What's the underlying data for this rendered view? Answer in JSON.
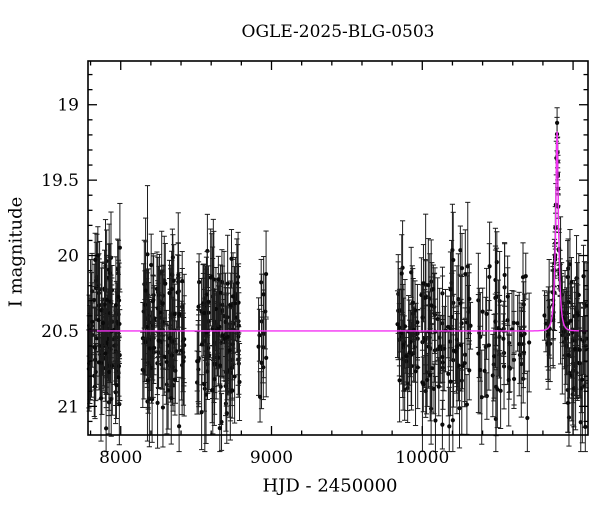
{
  "title": "OGLE-2025-BLG-0503",
  "chart_data": {
    "type": "scatter",
    "title": "OGLE-2025-BLG-0503",
    "xlabel": "HJD - 2450000",
    "ylabel": "I magnitude",
    "xlim": [
      7783,
      11099
    ],
    "ylim": [
      21.19,
      18.71
    ],
    "x_major_ticks": [
      {
        "value": 8000,
        "label": "8000"
      },
      {
        "value": 9000,
        "label": "9000"
      },
      {
        "value": 10000,
        "label": "10000"
      },
      {
        "value": 11000,
        "label": ""
      }
    ],
    "x_minor_step": 200,
    "y_major_ticks": [
      {
        "value": 19,
        "label": "19"
      },
      {
        "value": 19.5,
        "label": "19.5"
      },
      {
        "value": 20,
        "label": "20"
      },
      {
        "value": 20.5,
        "label": "20.5"
      },
      {
        "value": 21,
        "label": "21"
      }
    ],
    "y_minor_step": 0.1,
    "grid": false,
    "background_color": "#ffffff",
    "frame_color": "#000000",
    "point_color": "#0a0a0a",
    "errorbar_color": "#1c1c1c",
    "model_color": "#f332f3",
    "model_curve": {
      "type": "paczynski",
      "baseline_mag": 20.5,
      "t0": 10894,
      "tE": 20,
      "u0": 0.306,
      "peak_mag": 19.17
    },
    "brightest_point": {
      "t": 10894,
      "mag": 19.12,
      "err": 0.1
    },
    "clusters": [
      {
        "id": "season-1",
        "t_min": 7788,
        "t_max": 7996,
        "n": 112,
        "mode": "baseline",
        "mean_mag": 20.52,
        "sigma": 0.26
      },
      {
        "id": "season-2",
        "t_min": 8145,
        "t_max": 8425,
        "n": 118,
        "mode": "baseline",
        "mean_mag": 20.5,
        "sigma": 0.26
      },
      {
        "id": "season-3",
        "t_min": 8505,
        "t_max": 8790,
        "n": 122,
        "mode": "baseline",
        "mean_mag": 20.52,
        "sigma": 0.27
      },
      {
        "id": "season-4",
        "t_min": 8910,
        "t_max": 8972,
        "n": 13,
        "mode": "baseline",
        "mean_mag": 20.45,
        "sigma": 0.2
      },
      {
        "id": "season-5",
        "t_min": 9833,
        "t_max": 9970,
        "n": 42,
        "mode": "baseline",
        "mean_mag": 20.5,
        "sigma": 0.25
      },
      {
        "id": "season-6",
        "t_min": 9992,
        "t_max": 10156,
        "n": 48,
        "mode": "baseline",
        "mean_mag": 20.52,
        "sigma": 0.26
      },
      {
        "id": "season-7",
        "t_min": 10170,
        "t_max": 10322,
        "n": 42,
        "mode": "baseline",
        "mean_mag": 20.5,
        "sigma": 0.26
      },
      {
        "id": "season-8",
        "t_min": 10370,
        "t_max": 10720,
        "n": 62,
        "mode": "baseline",
        "mean_mag": 20.52,
        "sigma": 0.26
      },
      {
        "id": "event-rise",
        "t_min": 10800,
        "t_max": 10862,
        "n": 10,
        "mode": "model",
        "sigma": 0.1
      },
      {
        "id": "event-peak",
        "t_min": 10864,
        "t_max": 10924,
        "n": 34,
        "mode": "model",
        "sigma": 0.06
      },
      {
        "id": "event-fall",
        "t_min": 10926,
        "t_max": 10950,
        "n": 8,
        "mode": "model",
        "sigma": 0.1
      },
      {
        "id": "season-9",
        "t_min": 10952,
        "t_max": 11095,
        "n": 54,
        "mode": "baseline",
        "mean_mag": 20.55,
        "sigma": 0.26
      }
    ]
  }
}
